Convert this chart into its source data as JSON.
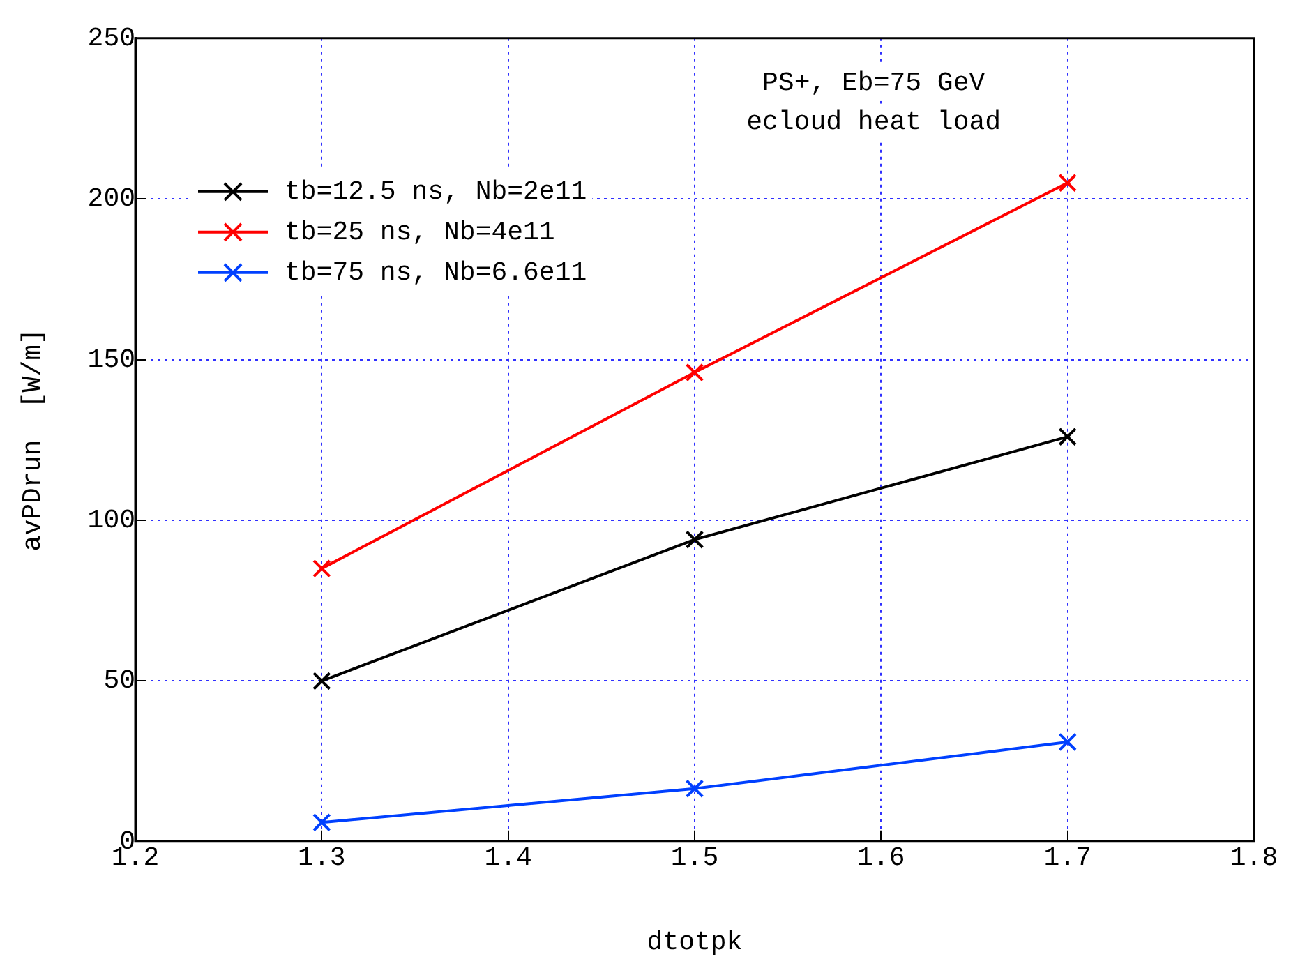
{
  "chart_data": {
    "type": "line",
    "xlabel": "dtotpk",
    "ylabel": "avPDrun  [W/m]",
    "annotations": [
      "PS+, Eb=75 GeV",
      "ecloud heat load"
    ],
    "x": [
      1.3,
      1.5,
      1.7
    ],
    "series": [
      {
        "name": "tb=12.5 ns, Nb=2e11",
        "color": "#000000",
        "values": [
          50,
          94,
          126
        ]
      },
      {
        "name": "tb=25 ns, Nb=4e11",
        "color": "#ff0000",
        "values": [
          85,
          146,
          205
        ]
      },
      {
        "name": "tb=75 ns, Nb=6.6e11",
        "color": "#0040ff",
        "values": [
          6,
          16.5,
          31
        ]
      }
    ],
    "xlim": [
      1.2,
      1.8
    ],
    "xticks": [
      1.2,
      1.3,
      1.4,
      1.5,
      1.6,
      1.7,
      1.8
    ],
    "ylim": [
      0,
      250
    ],
    "yticks": [
      0,
      50,
      100,
      150,
      200,
      250
    ],
    "grid": true,
    "legend": "top left",
    "marker": "cross",
    "line_style": "solid"
  }
}
